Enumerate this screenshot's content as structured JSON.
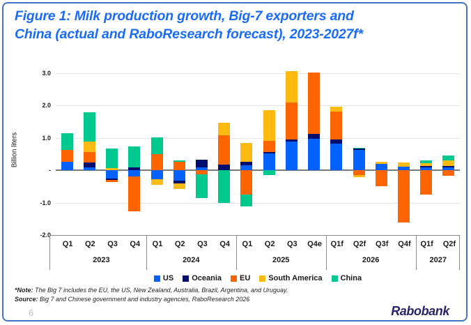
{
  "card": {
    "title_line1": "Figure 1: Milk production growth, Big-7 exporters and",
    "title_line2": "China (actual and RaboResearch forecast), 2023-2027f*",
    "page_number": "6",
    "brand": "Rabobank"
  },
  "footer": {
    "note_label": "*Note:",
    "note_text": "The Big 7 includes the EU, the US, New Zealand, Australia, Brazil, Argentina, and Uruguay.",
    "source_label": "Source:",
    "source_text": "Big 7 and Chinese government and industry agencies, RaboResearch 2026"
  },
  "colors": {
    "title_accent": "#1b6cf5",
    "card_border": "#4472c4",
    "brand_logo": "#28246a"
  },
  "chart_data": {
    "type": "bar",
    "stacked": true,
    "title": "Figure 1: Milk production growth, Big-7 exporters and China (actual and RaboResearch forecast), 2023-2027f*",
    "xlabel": "",
    "ylabel": "Billion liters",
    "ylim": [
      -2.0,
      3.0
    ],
    "grid": true,
    "legend_position": "bottom",
    "yticks": [
      {
        "value": 3,
        "label": "3.0"
      },
      {
        "value": 2,
        "label": "2.0"
      },
      {
        "value": 1,
        "label": "1.0"
      },
      {
        "value": 0,
        "label": "-"
      },
      {
        "value": -1,
        "label": "-1.0"
      },
      {
        "value": -2,
        "label": "-2.0"
      }
    ],
    "quarters": [
      "Q1",
      "Q2",
      "Q3",
      "Q4",
      "Q1",
      "Q2",
      "Q3",
      "Q4",
      "Q1",
      "Q2",
      "Q3",
      "Q4e",
      "Q1f",
      "Q2f",
      "Q3f",
      "Q4f",
      "Q1f",
      "Q2f"
    ],
    "year_groups": [
      {
        "label": "2023",
        "span": 4
      },
      {
        "label": "2024",
        "span": 4
      },
      {
        "label": "2025",
        "span": 4
      },
      {
        "label": "2026",
        "span": 4
      },
      {
        "label": "2027",
        "span": 2
      }
    ],
    "series": [
      {
        "name": "US",
        "color": "#0561fc",
        "values": [
          0.25,
          0.09,
          -0.25,
          -0.19,
          -0.29,
          -0.32,
          0.09,
          0.0,
          0.16,
          0.52,
          0.88,
          0.97,
          0.82,
          0.64,
          0.19,
          0.1,
          0.08,
          0.09
        ]
      },
      {
        "name": "Oceania",
        "color": "#000f6e",
        "values": [
          0.0,
          0.15,
          -0.05,
          0.08,
          0.0,
          -0.09,
          0.24,
          0.18,
          0.09,
          0.04,
          0.07,
          0.14,
          0.12,
          0.02,
          0.0,
          0.0,
          0.04,
          0.04
        ]
      },
      {
        "name": "EU",
        "color": "#fe6500",
        "values": [
          0.38,
          0.31,
          -0.06,
          -1.08,
          0.5,
          0.27,
          -0.12,
          0.9,
          -0.76,
          0.34,
          1.14,
          1.91,
          0.86,
          -0.15,
          -0.5,
          -1.62,
          -0.75,
          -0.18
        ]
      },
      {
        "name": "South America",
        "color": "#fdba12",
        "values": [
          0.0,
          0.33,
          0.06,
          0.0,
          -0.17,
          -0.18,
          0.0,
          0.38,
          0.58,
          0.95,
          0.96,
          0.0,
          0.16,
          -0.07,
          0.06,
          0.14,
          0.09,
          0.17
        ]
      },
      {
        "name": "China",
        "color": "#00c98f",
        "values": [
          0.5,
          0.9,
          0.61,
          0.65,
          0.51,
          0.03,
          -0.74,
          -1.0,
          -0.35,
          -0.14,
          0.0,
          0.0,
          0.0,
          0.03,
          0.0,
          0.0,
          0.1,
          0.15
        ]
      }
    ]
  }
}
